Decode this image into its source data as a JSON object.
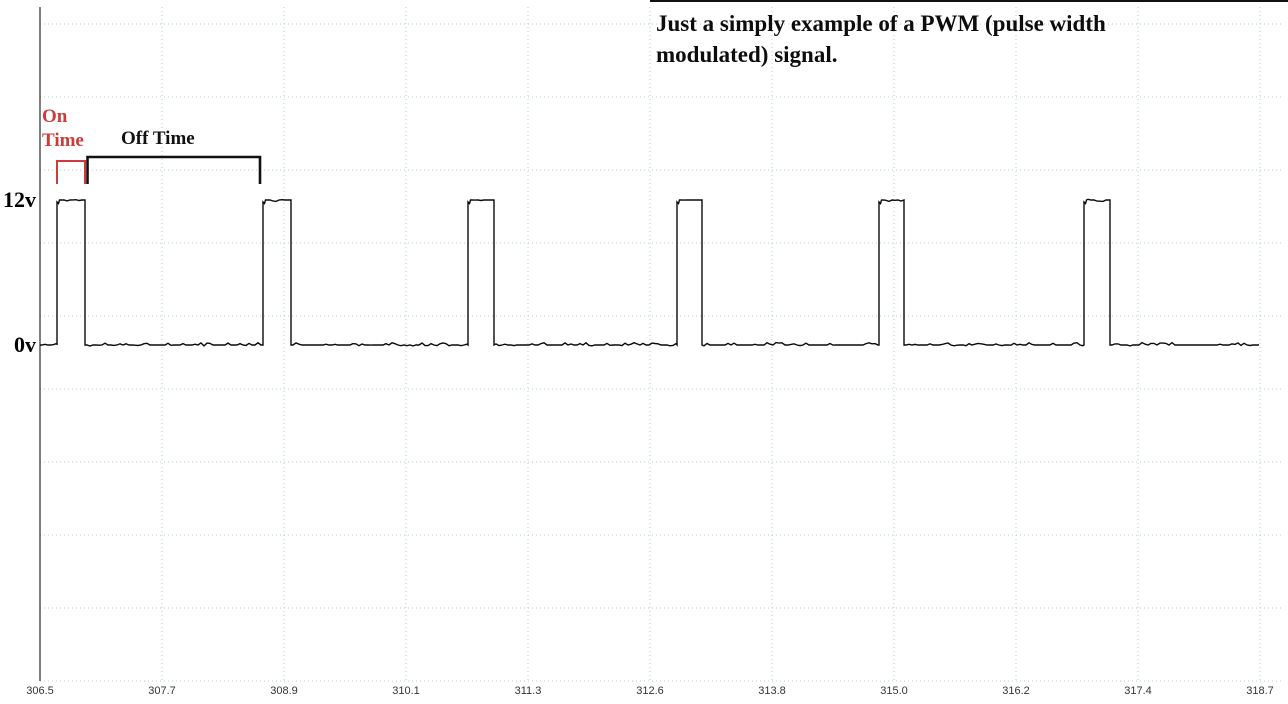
{
  "title": {
    "line1": "Just a simply example of a PWM (pulse width",
    "line2": "modulated) signal."
  },
  "annotations": {
    "on_line1": "On",
    "on_line2": "Time",
    "off": "Off Time"
  },
  "y_axis": {
    "high_label": "12v",
    "low_label": "0v"
  },
  "colors": {
    "grid": "#aecfdb",
    "signal": "#0a0a0a",
    "on_red": "#cd3b3b",
    "bracket_black": "#111111",
    "axis_line": "#2a2a2a",
    "tick_text": "#333333"
  },
  "chart_data": {
    "type": "line",
    "title": "Just a simply example of a PWM (pulse width modulated) signal.",
    "xlabel": "",
    "ylabel": "",
    "x_min": 306.5,
    "x_max": 318.7,
    "x_tick_labels": [
      "306.5",
      "307.7",
      "308.9",
      "310.1",
      "311.3",
      "312.6",
      "313.8",
      "315.0",
      "316.2",
      "317.4",
      "318.7"
    ],
    "y_levels": {
      "high_label": "12v",
      "high_value": 12,
      "low_label": "0v",
      "low_value": 0
    },
    "grid": true,
    "duty_cycle_approx": 0.13,
    "period_approx": 2.06,
    "pulses": [
      {
        "on": 306.67,
        "off": 306.95
      },
      {
        "on": 308.73,
        "off": 309.01
      },
      {
        "on": 310.78,
        "off": 311.04
      },
      {
        "on": 312.87,
        "off": 313.12
      },
      {
        "on": 314.89,
        "off": 315.14
      },
      {
        "on": 316.94,
        "off": 317.2
      }
    ],
    "on_time_span": [
      306.67,
      306.95
    ],
    "off_time_span": [
      306.95,
      308.7
    ]
  }
}
